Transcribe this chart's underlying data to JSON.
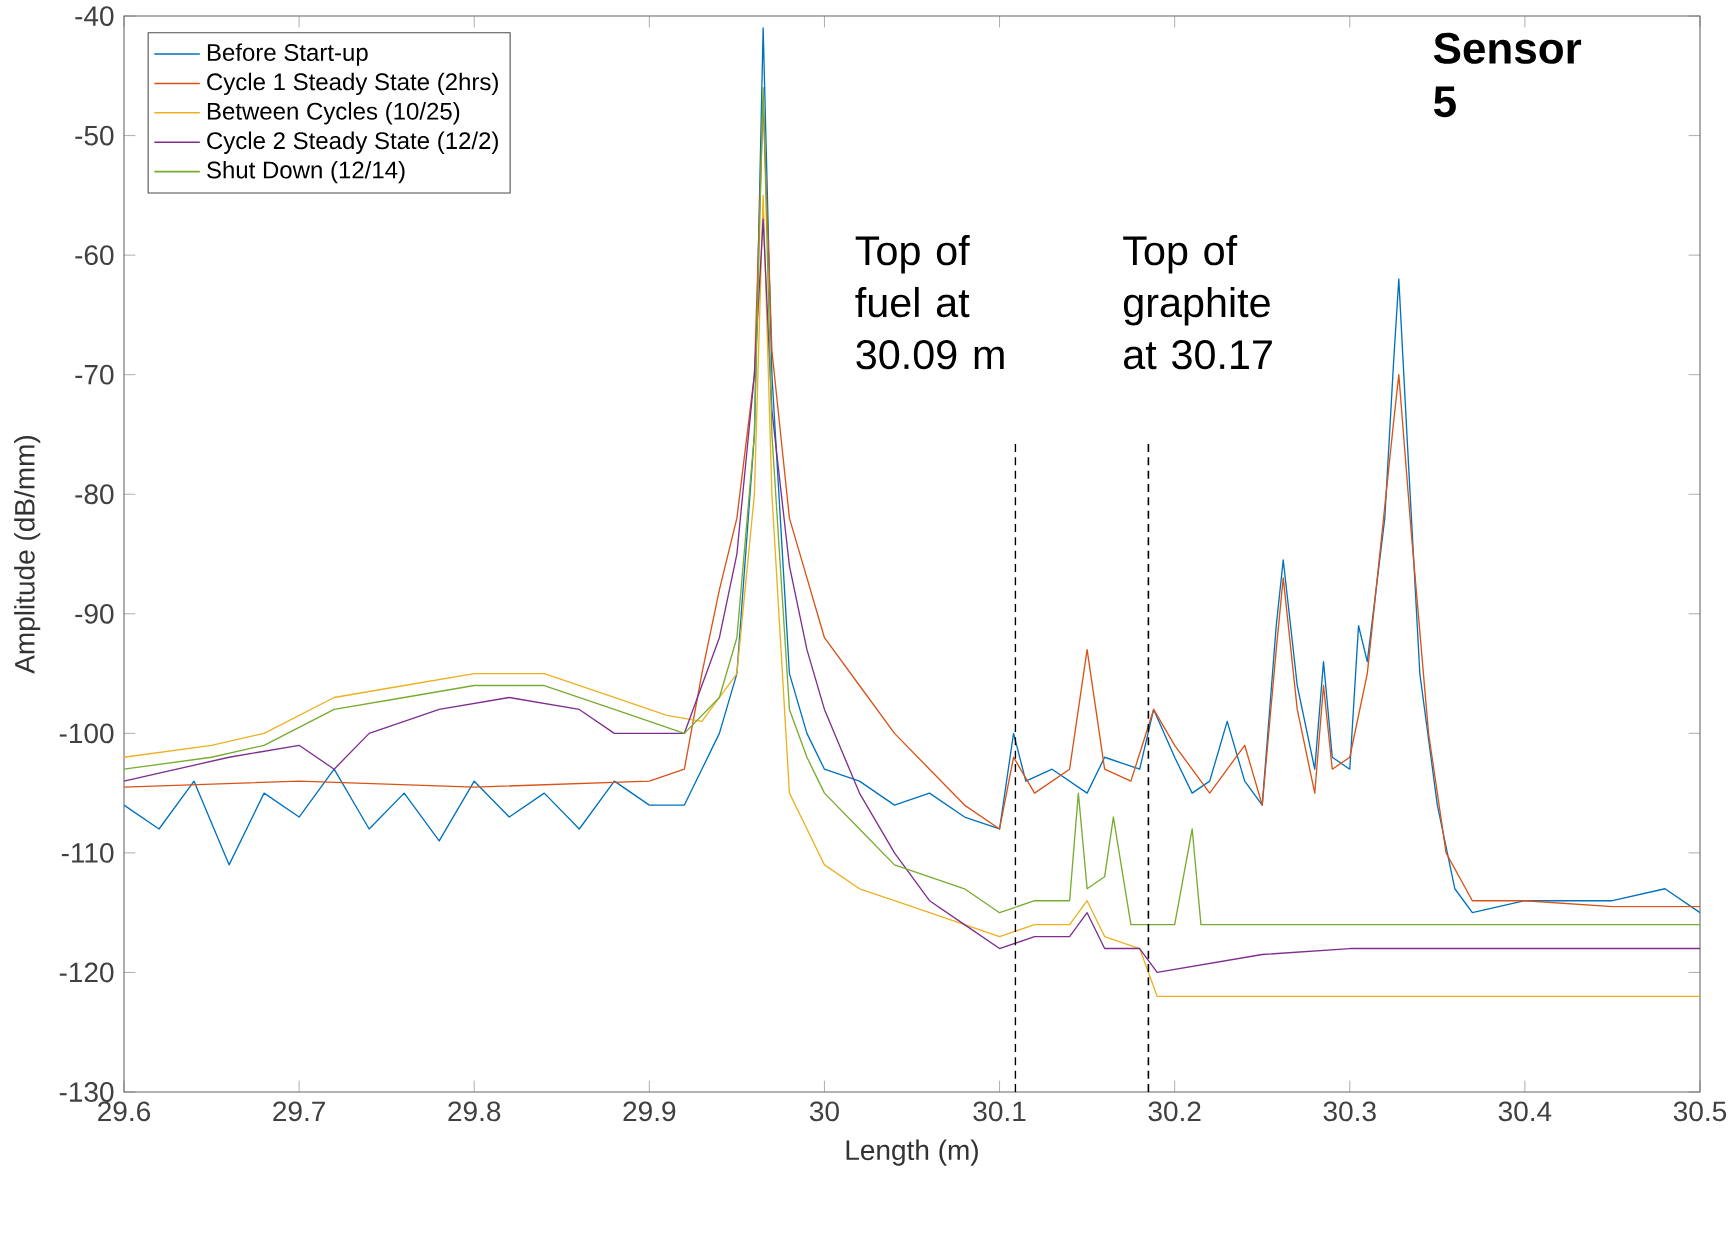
{
  "chart_data": {
    "type": "line",
    "title": "Sensor 5",
    "xlabel": "Length (m)",
    "ylabel": "Amplitude (dB/mm)",
    "xlim": [
      29.6,
      30.5
    ],
    "xticks": [
      29.6,
      29.7,
      29.8,
      29.9,
      30,
      30.1,
      30.2,
      30.3,
      30.4,
      30.5
    ],
    "ylim": [
      -130,
      -40
    ],
    "yticks": [
      -130,
      -120,
      -110,
      -100,
      -90,
      -80,
      -70,
      -60,
      -50,
      -40
    ],
    "legend": "top left",
    "ref_lines": [
      {
        "axis": "x",
        "value": 30.109,
        "color": "#000000",
        "line_style": "dashed",
        "label": "Top of fuel at 30.09 m"
      },
      {
        "axis": "x",
        "value": 30.185,
        "color": "#000000",
        "line_style": "dashed",
        "label": "Top of graphite at 30.17"
      }
    ],
    "series": [
      {
        "name": "Before Start-up",
        "color": "#0072bd",
        "x": [
          29.6,
          29.62,
          29.64,
          29.66,
          29.68,
          29.7,
          29.72,
          29.74,
          29.76,
          29.78,
          29.8,
          29.82,
          29.84,
          29.86,
          29.88,
          29.9,
          29.92,
          29.93,
          29.94,
          29.95,
          29.96,
          29.965,
          29.97,
          29.98,
          29.99,
          30.0,
          30.02,
          30.04,
          30.06,
          30.08,
          30.1,
          30.108,
          30.115,
          30.13,
          30.15,
          30.16,
          30.18,
          30.188,
          30.2,
          30.21,
          30.22,
          30.23,
          30.24,
          30.25,
          30.258,
          30.262,
          30.27,
          30.28,
          30.285,
          30.29,
          30.3,
          30.305,
          30.31,
          30.32,
          30.325,
          30.328,
          30.333,
          30.34,
          30.35,
          30.36,
          30.37,
          30.4,
          30.45,
          30.48,
          30.5
        ],
        "values": [
          -106,
          -108,
          -104,
          -111,
          -105,
          -107,
          -103,
          -108,
          -105,
          -109,
          -104,
          -107,
          -105,
          -108,
          -104,
          -106,
          -106,
          -103,
          -100,
          -95,
          -75,
          -41,
          -70,
          -95,
          -100,
          -103,
          -104,
          -106,
          -105,
          -107,
          -108,
          -100,
          -104,
          -103,
          -105,
          -102,
          -103,
          -98,
          -102,
          -105,
          -104,
          -99,
          -104,
          -106,
          -91,
          -85.5,
          -96,
          -103,
          -94,
          -102,
          -103,
          -91,
          -94,
          -82,
          -69,
          -62,
          -76,
          -95,
          -106,
          -113,
          -115,
          -114,
          -114,
          -113,
          -115
        ]
      },
      {
        "name": "Cycle 1 Steady State (2hrs)",
        "color": "#d95319",
        "x": [
          29.6,
          29.7,
          29.8,
          29.9,
          29.92,
          29.93,
          29.94,
          29.95,
          29.96,
          29.965,
          29.97,
          29.98,
          29.99,
          30.0,
          30.02,
          30.04,
          30.06,
          30.08,
          30.1,
          30.108,
          30.12,
          30.14,
          30.15,
          30.16,
          30.175,
          30.188,
          30.2,
          30.22,
          30.24,
          30.25,
          30.258,
          30.262,
          30.27,
          30.28,
          30.285,
          30.29,
          30.3,
          30.31,
          30.325,
          30.328,
          30.335,
          30.345,
          30.355,
          30.37,
          30.4,
          30.45,
          30.5
        ],
        "values": [
          -104.5,
          -104,
          -104.5,
          -104,
          -103,
          -95,
          -88,
          -82,
          -70,
          -47,
          -68,
          -82,
          -87,
          -92,
          -96,
          -100,
          -103,
          -106,
          -108,
          -102,
          -105,
          -103,
          -93,
          -103,
          -104,
          -98,
          -101,
          -105,
          -101,
          -106,
          -93,
          -87,
          -98,
          -105,
          -96,
          -103,
          -102,
          -95,
          -74,
          -70,
          -83,
          -100,
          -110,
          -114,
          -114,
          -114.5,
          -114.5
        ]
      },
      {
        "name": "Between Cycles (10/25)",
        "color": "#edb120",
        "x": [
          29.6,
          29.65,
          29.68,
          29.72,
          29.76,
          29.8,
          29.84,
          29.88,
          29.91,
          29.93,
          29.95,
          29.96,
          29.965,
          29.97,
          29.98,
          29.99,
          30.0,
          30.02,
          30.04,
          30.06,
          30.08,
          30.1,
          30.12,
          30.14,
          30.15,
          30.16,
          30.18,
          30.19,
          30.25,
          30.3,
          30.4,
          30.5
        ],
        "values": [
          -102,
          -101,
          -100,
          -97,
          -96,
          -95,
          -95,
          -97,
          -98.5,
          -99,
          -95,
          -80,
          -55,
          -80,
          -105,
          -108,
          -111,
          -113,
          -114,
          -115,
          -116,
          -117,
          -116,
          -116,
          -114,
          -117,
          -118,
          -122,
          -122,
          -122,
          -122,
          -122
        ]
      },
      {
        "name": "Cycle 2 Steady State (12/2)",
        "color": "#7e2f8e",
        "x": [
          29.6,
          29.66,
          29.7,
          29.72,
          29.74,
          29.78,
          29.82,
          29.86,
          29.88,
          29.92,
          29.94,
          29.95,
          29.96,
          29.965,
          29.97,
          29.98,
          29.99,
          30.0,
          30.02,
          30.04,
          30.06,
          30.08,
          30.1,
          30.12,
          30.14,
          30.15,
          30.16,
          30.18,
          30.19,
          30.25,
          30.3,
          30.4,
          30.5
        ],
        "values": [
          -104,
          -102,
          -101,
          -103,
          -100,
          -98,
          -97,
          -98,
          -100,
          -100,
          -92,
          -85,
          -70,
          -57,
          -73,
          -86,
          -93,
          -98,
          -105,
          -110,
          -114,
          -116,
          -118,
          -117,
          -117,
          -115,
          -118,
          -118,
          -120,
          -118.5,
          -118,
          -118,
          -118
        ]
      },
      {
        "name": "Shut Down (12/14)",
        "color": "#77ac30",
        "x": [
          29.6,
          29.65,
          29.68,
          29.72,
          29.76,
          29.8,
          29.84,
          29.88,
          29.92,
          29.94,
          29.95,
          29.96,
          29.965,
          29.97,
          29.98,
          29.99,
          30.0,
          30.02,
          30.04,
          30.06,
          30.08,
          30.1,
          30.12,
          30.14,
          30.145,
          30.15,
          30.16,
          30.165,
          30.175,
          30.2,
          30.21,
          30.215,
          30.3,
          30.4,
          30.5
        ],
        "values": [
          -103,
          -102,
          -101,
          -98,
          -97,
          -96,
          -96,
          -98,
          -100,
          -97,
          -92,
          -75,
          -46,
          -75,
          -98,
          -102,
          -105,
          -108,
          -111,
          -112,
          -113,
          -115,
          -114,
          -114,
          -105,
          -113,
          -112,
          -107,
          -116,
          -116,
          -108,
          -116,
          -116,
          -116,
          -116
        ]
      }
    ]
  }
}
